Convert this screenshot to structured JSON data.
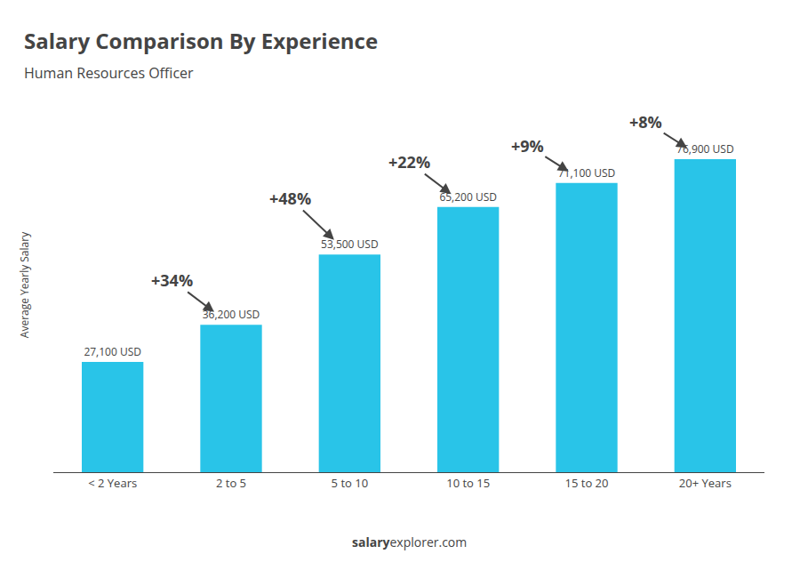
{
  "chart_data": {
    "type": "bar",
    "title": "Salary Comparison By Experience",
    "subtitle": "Human Resources Officer",
    "ylabel": "Average Yearly Salary",
    "categories": [
      "< 2 Years",
      "2 to 5",
      "5 to 10",
      "10 to 15",
      "15 to 20",
      "20+ Years"
    ],
    "values": [
      27100,
      36200,
      53500,
      65200,
      71100,
      76900
    ],
    "value_labels": [
      "27,100 USD",
      "36,200 USD",
      "53,500 USD",
      "65,200 USD",
      "71,100 USD",
      "76,900 USD"
    ],
    "data_labels": true,
    "annotations": [
      "+34%",
      "+48%",
      "+22%",
      "+9%",
      "+8%"
    ],
    "footer": [
      "salary",
      "explorer.com"
    ],
    "color": "#29c4e8",
    "ylim": [
      0,
      92000
    ],
    "grid": false,
    "tick_labels": "x"
  }
}
